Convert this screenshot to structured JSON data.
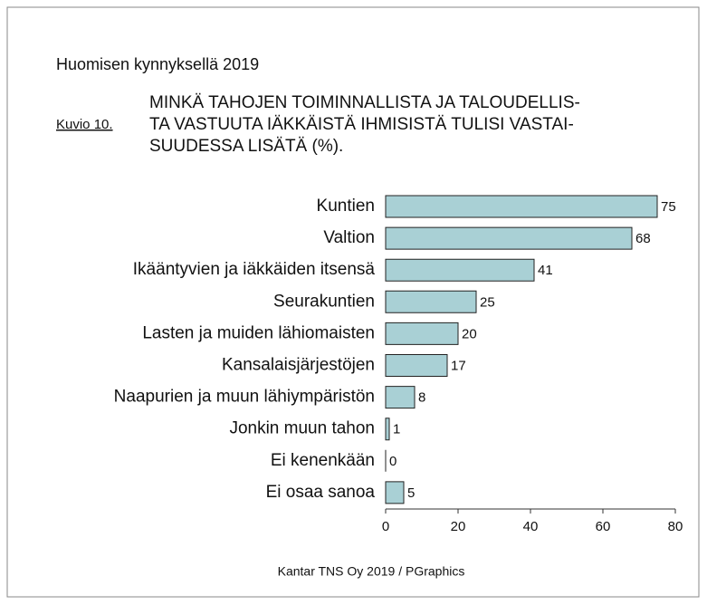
{
  "chart_data": {
    "type": "bar",
    "orientation": "horizontal",
    "header": "Huomisen kynnyksellä 2019",
    "figure_label": "Kuvio 10.",
    "title_lines": [
      "MINKÄ TAHOJEN TOIMINNALLISTA JA TALOUDELLIS-",
      "TA VASTUUTA IÄKKÄISTÄ IHMISISTÄ TULISI VASTAI-",
      "SUUDESSA LISÄTÄ (%)."
    ],
    "categories": [
      "Kuntien",
      "Valtion",
      "Ikääntyvien ja iäkkäiden itsensä",
      "Seurakuntien",
      "Lasten ja muiden lähiomaisten",
      "Kansalaisjärjestöjen",
      "Naapurien ja muun lähiympäristön",
      "Jonkin muun tahon",
      "Ei kenenkään",
      "Ei osaa sanoa"
    ],
    "values": [
      75,
      68,
      41,
      25,
      20,
      17,
      8,
      1,
      0,
      5
    ],
    "color": "#a9d0d5",
    "xlim": [
      0,
      80
    ],
    "xticks": [
      0,
      20,
      40,
      60,
      80
    ],
    "source": "Kantar TNS Oy 2019 / PGraphics"
  }
}
